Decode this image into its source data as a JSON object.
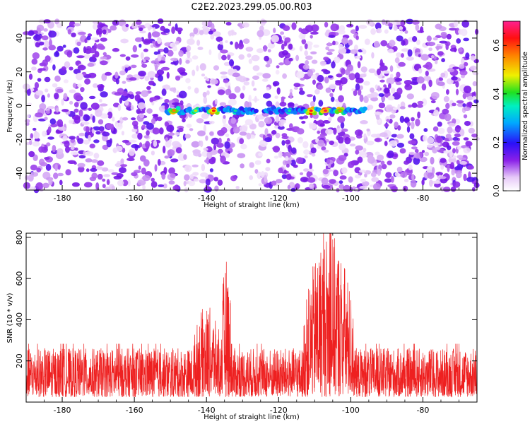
{
  "title": "C2E2.2023.299.05.00.R03",
  "chart_data": [
    {
      "type": "heatmap",
      "xlabel": "Height of straight line (km)",
      "ylabel": "Frequency (Hz)",
      "xlim": [
        -190,
        -65
      ],
      "ylim": [
        -50,
        50
      ],
      "xticks": [
        -180,
        -160,
        -140,
        -120,
        -100,
        -80
      ],
      "yticks": [
        -40,
        -20,
        0,
        20,
        40
      ],
      "colorbar": {
        "label": "Normalized spectral amplitude",
        "range": [
          0,
          0.7
        ],
        "ticks": [
          0.0,
          0.2,
          0.4,
          0.6
        ],
        "colormap": "rainbow (white-violet-blue-cyan-green-yellow-red-magenta)"
      },
      "gaps_km": [
        [
          -146,
          -140
        ],
        [
          -130,
          -124
        ],
        [
          -97,
          -93
        ]
      ],
      "ridge": {
        "frequency_hz": -3,
        "segments_km": [
          [
            -151,
            -126
          ],
          [
            -124,
            -96
          ]
        ],
        "peaks": [
          {
            "x": -149,
            "amp": 0.55
          },
          {
            "x": -143,
            "amp": 0.45
          },
          {
            "x": -138,
            "amp": 0.62
          },
          {
            "x": -132,
            "amp": 0.35
          },
          {
            "x": -117,
            "amp": 0.35
          },
          {
            "x": -111,
            "amp": 0.62
          },
          {
            "x": -107,
            "amp": 0.66
          },
          {
            "x": -103,
            "amp": 0.55
          }
        ]
      }
    },
    {
      "type": "line",
      "xlabel": "Height of straight line (km)",
      "ylabel": "SNR (10 * v/v)",
      "xlim": [
        -190,
        -65
      ],
      "ylim": [
        0,
        820
      ],
      "xticks": [
        -180,
        -160,
        -140,
        -120,
        -100,
        -80
      ],
      "yticks": [
        200,
        400,
        600,
        800
      ],
      "color": "#ee2020",
      "baseline": {
        "mean": 110,
        "spread": 95
      },
      "envelope": [
        {
          "x": [
            -144,
            -136
          ],
          "peak": 470
        },
        {
          "x": [
            -136,
            -133
          ],
          "peak": 700
        },
        {
          "x": [
            -113,
            -99
          ],
          "peak": 820
        },
        {
          "x": [
            -107,
            -103
          ],
          "peak": 760
        }
      ]
    }
  ]
}
